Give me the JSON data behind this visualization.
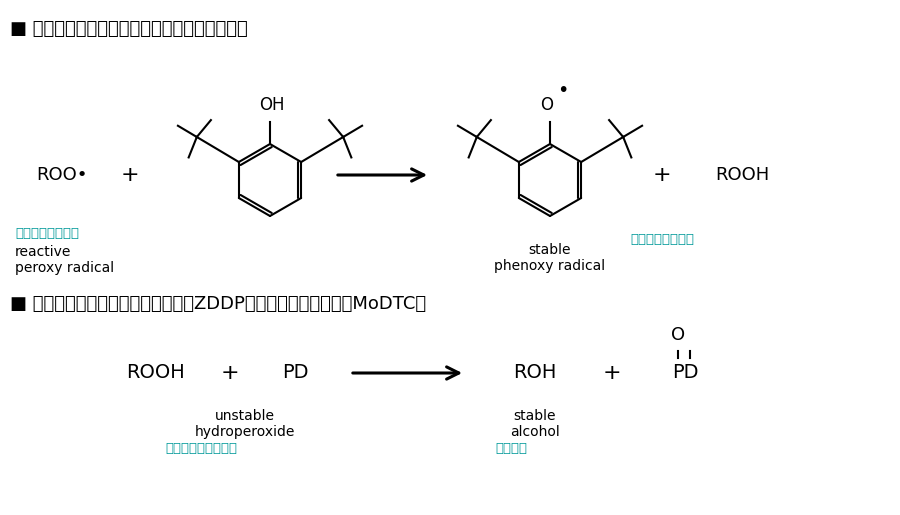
{
  "bg_color": "#ffffff",
  "text_color": "#000000",
  "teal_color": "#009999",
  "title1_bullet": "■ ",
  "title1_text": "主抗氧剂（受阻酚类，烷基化二苯胺，萸胺）",
  "title2_bullet": "■ ",
  "title2_text": "辅助抗氧剂（二烷基二硫代磷酸锌ZDDP，二烷基二硫代甲酸鉄MoDTC）",
  "label_reactive_cn": "活泼的过氧自由基",
  "label_reactive_en1": "reactive",
  "label_reactive_en2": "peroxy radical",
  "label_stable_cn": "稳定的苯氧自由基",
  "label_stable_en1": "stable",
  "label_stable_en2": "phenoxy radical",
  "label_unstable_en1": "unstable",
  "label_unstable_en2": "hydroperoxide",
  "label_unstable_cn": "不稳定的氢过氧化物",
  "label_salcohol_en1": "stable",
  "label_salcohol_en2": "alcohol",
  "label_salcohol_cn": "稳定的醇",
  "figsize": [
    9.0,
    5.15
  ],
  "dpi": 100
}
